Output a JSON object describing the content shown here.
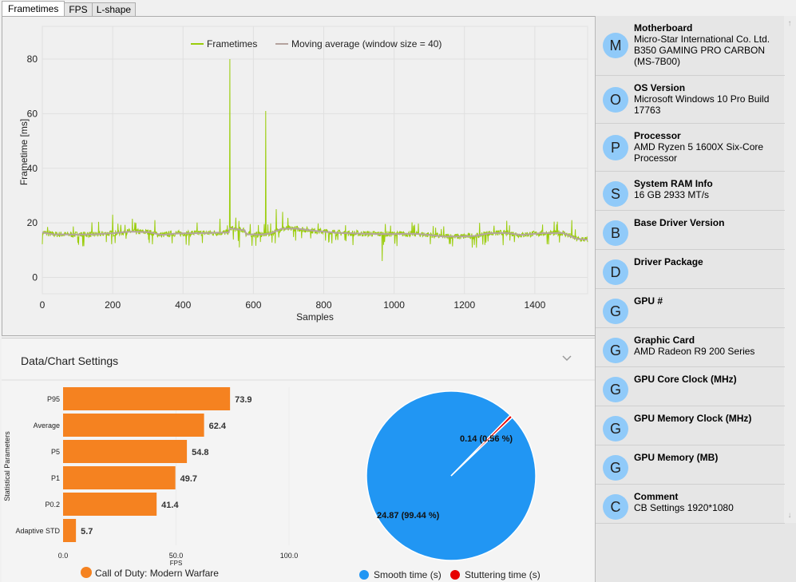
{
  "tabs": [
    {
      "label": "Frametimes",
      "active": true
    },
    {
      "label": "FPS",
      "active": false
    },
    {
      "label": "L-shape",
      "active": false
    }
  ],
  "colors": {
    "frametimes": "#9acd0a",
    "moving_average": "#b4a39e",
    "bar": "#f58220",
    "smooth": "#2196f3",
    "stuttering": "#e60000",
    "avatar": "#90caf9"
  },
  "frametime_chart": {
    "chart_data": {
      "type": "line",
      "title": "",
      "xlabel": "Samples",
      "ylabel": "Frametime [ms]",
      "xlim": [
        0,
        1550
      ],
      "ylim": [
        -6,
        92
      ],
      "x_ticks": [
        "0",
        "200",
        "400",
        "600",
        "800",
        "1000",
        "1200",
        "1400"
      ],
      "y_ticks": [
        "0",
        "20",
        "40",
        "60",
        "80"
      ],
      "grid": true,
      "legend": "top-center",
      "series": [
        {
          "name": "Frametimes",
          "note": "noisy around moving average, ~+/-3 ms",
          "spikes": [
            [
              15,
              18.5
            ],
            [
              200,
              23
            ],
            [
              256,
              21.5
            ],
            [
              320,
              21
            ],
            [
              505,
              21.5
            ],
            [
              533,
              80
            ],
            [
              560,
              11
            ],
            [
              635,
              61
            ],
            [
              665,
              25
            ],
            [
              683,
              24
            ],
            [
              966,
              6
            ],
            [
              1505,
              21
            ]
          ]
        },
        {
          "name": "Moving average (window size = 40)",
          "points": [
            [
              0,
              16.5
            ],
            [
              30,
              15.8
            ],
            [
              100,
              15.7
            ],
            [
              150,
              15.8
            ],
            [
              200,
              16.2
            ],
            [
              250,
              16.8
            ],
            [
              300,
              16.6
            ],
            [
              340,
              15.6
            ],
            [
              380,
              16.1
            ],
            [
              430,
              16.2
            ],
            [
              480,
              16.3
            ],
            [
              530,
              16.5
            ],
            [
              533,
              18.0
            ],
            [
              575,
              17.3
            ],
            [
              580,
              15.8
            ],
            [
              625,
              15.7
            ],
            [
              650,
              16.2
            ],
            [
              680,
              17.8
            ],
            [
              720,
              17.9
            ],
            [
              780,
              17.0
            ],
            [
              840,
              16.3
            ],
            [
              900,
              16.1
            ],
            [
              960,
              15.9
            ],
            [
              1000,
              15.9
            ],
            [
              1060,
              16.0
            ],
            [
              1100,
              15.6
            ],
            [
              1140,
              15.0
            ],
            [
              1190,
              15.0
            ],
            [
              1230,
              15.2
            ],
            [
              1270,
              16.2
            ],
            [
              1320,
              16.3
            ],
            [
              1360,
              15.6
            ],
            [
              1420,
              16.2
            ],
            [
              1480,
              16.3
            ],
            [
              1520,
              14.1
            ],
            [
              1550,
              13.8
            ]
          ]
        }
      ]
    }
  },
  "settings": {
    "title": "Data/Chart Settings"
  },
  "bar_chart": {
    "chart_data": {
      "type": "bar",
      "orientation": "horizontal",
      "categories": [
        "P95",
        "Average",
        "P5",
        "P1",
        "P0.2",
        "Adaptive STD"
      ],
      "values": [
        73.9,
        62.4,
        54.8,
        49.7,
        41.4,
        5.7
      ],
      "value_labels": [
        "73.9",
        "62.4",
        "54.8",
        "49.7",
        "41.4",
        "5.7"
      ],
      "xlabel": "FPS",
      "ylabel": "Statistical Parameters",
      "xlim": [
        0,
        100
      ],
      "x_ticks": [
        "0.0",
        "50.0",
        "100.0"
      ],
      "legend": "bottom",
      "series": [
        {
          "name": "Call of Duty: Modern Warfare"
        }
      ]
    }
  },
  "pie_chart": {
    "chart_data": {
      "type": "pie",
      "slices": [
        {
          "name": "Smooth time (s)",
          "value": 24.87,
          "label": "24.87 (99.44 %)"
        },
        {
          "name": "Stuttering time (s)",
          "value": 0.14,
          "label": "0.14 (0.56 %)"
        }
      ],
      "legend": "bottom"
    }
  },
  "system_info": [
    {
      "initial": "M",
      "title": "Motherboard",
      "lines": [
        "Micro-Star International Co. Ltd.",
        "B350 GAMING PRO CARBON",
        "(MS-7B00)"
      ]
    },
    {
      "initial": "O",
      "title": "OS Version",
      "lines": [
        "Microsoft Windows 10 Pro Build",
        "17763"
      ]
    },
    {
      "initial": "P",
      "title": "Processor",
      "lines": [
        "AMD Ryzen 5 1600X Six-Core",
        "Processor"
      ]
    },
    {
      "initial": "S",
      "title": "System RAM Info",
      "lines": [
        "16 GB 2933 MT/s"
      ]
    },
    {
      "initial": "B",
      "title": "Base Driver Version",
      "lines": []
    },
    {
      "initial": "D",
      "title": "Driver Package",
      "lines": []
    },
    {
      "initial": "G",
      "title": "GPU #",
      "lines": []
    },
    {
      "initial": "G",
      "title": "Graphic Card",
      "lines": [
        "AMD Radeon R9 200 Series"
      ]
    },
    {
      "initial": "G",
      "title": "GPU Core Clock (MHz)",
      "lines": []
    },
    {
      "initial": "G",
      "title": "GPU Memory Clock (MHz)",
      "lines": []
    },
    {
      "initial": "G",
      "title": "GPU Memory (MB)",
      "lines": []
    },
    {
      "initial": "C",
      "title": "Comment",
      "lines": [
        "CB Settings 1920*1080"
      ]
    }
  ],
  "scroll": {
    "up": "↑",
    "down": "↓"
  }
}
